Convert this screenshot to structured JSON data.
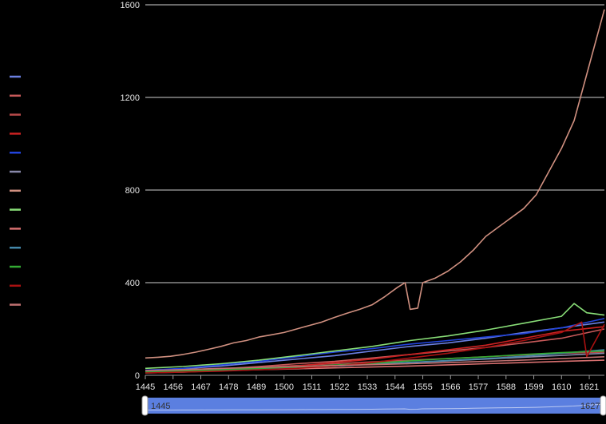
{
  "chart_data": {
    "type": "line",
    "title": "",
    "xlabel": "",
    "ylabel": "",
    "xlim": [
      1445,
      1627
    ],
    "ylim": [
      0,
      1600
    ],
    "y_ticks": [
      0,
      400,
      800,
      1200,
      1600
    ],
    "x_ticks": [
      1445,
      1456,
      1467,
      1478,
      1489,
      1500,
      1511,
      1522,
      1533,
      1544,
      1555,
      1566,
      1577,
      1588,
      1599,
      1610,
      1621
    ],
    "grid": "horizontal",
    "legend_position": "left",
    "series": [
      {
        "color": "#6b7fe0",
        "x": [
          1445,
          1460,
          1475,
          1490,
          1505,
          1520,
          1535,
          1550,
          1565,
          1580,
          1595,
          1610,
          1627
        ],
        "y": [
          20,
          28,
          40,
          55,
          70,
          85,
          105,
          125,
          140,
          160,
          185,
          205,
          230
        ]
      },
      {
        "color": "#c85a5a",
        "x": [
          1445,
          1460,
          1475,
          1490,
          1505,
          1520,
          1535,
          1550,
          1565,
          1580,
          1595,
          1610,
          1627
        ],
        "y": [
          15,
          20,
          28,
          38,
          50,
          60,
          75,
          90,
          105,
          120,
          140,
          160,
          200
        ]
      },
      {
        "color": "#b84a4a",
        "x": [
          1445,
          1460,
          1475,
          1490,
          1505,
          1520,
          1535,
          1550,
          1565,
          1580,
          1595,
          1610,
          1627
        ],
        "y": [
          18,
          22,
          28,
          35,
          42,
          50,
          58,
          66,
          72,
          80,
          88,
          95,
          100
        ]
      },
      {
        "color": "#cc2222",
        "x": [
          1445,
          1460,
          1475,
          1490,
          1505,
          1520,
          1535,
          1550,
          1565,
          1580,
          1595,
          1610,
          1627
        ],
        "y": [
          12,
          16,
          22,
          30,
          40,
          55,
          70,
          90,
          110,
          130,
          160,
          190,
          210
        ]
      },
      {
        "color": "#2244dd",
        "x": [
          1445,
          1460,
          1475,
          1490,
          1505,
          1520,
          1535,
          1550,
          1565,
          1580,
          1595,
          1610,
          1627
        ],
        "y": [
          22,
          30,
          45,
          60,
          80,
          100,
          115,
          135,
          150,
          165,
          180,
          205,
          245
        ]
      },
      {
        "color": "#8888aa",
        "x": [
          1445,
          1460,
          1475,
          1490,
          1505,
          1520,
          1535,
          1550,
          1565,
          1580,
          1595,
          1610,
          1627
        ],
        "y": [
          10,
          14,
          20,
          26,
          32,
          40,
          48,
          55,
          62,
          70,
          78,
          86,
          95
        ]
      },
      {
        "color": "#d09080",
        "x": [
          1445,
          1450,
          1455,
          1460,
          1465,
          1470,
          1475,
          1480,
          1485,
          1490,
          1495,
          1500,
          1505,
          1510,
          1515,
          1520,
          1525,
          1530,
          1535,
          1540,
          1545,
          1548,
          1550,
          1553,
          1555,
          1560,
          1565,
          1570,
          1575,
          1580,
          1585,
          1590,
          1595,
          1600,
          1605,
          1610,
          1615,
          1620,
          1627
        ],
        "y": [
          75,
          78,
          82,
          90,
          100,
          112,
          125,
          140,
          150,
          165,
          175,
          185,
          200,
          215,
          230,
          250,
          268,
          285,
          305,
          340,
          380,
          400,
          285,
          290,
          400,
          420,
          450,
          490,
          540,
          600,
          640,
          680,
          720,
          780,
          880,
          980,
          1100,
          1300,
          1580
        ]
      },
      {
        "color": "#88dd77",
        "x": [
          1445,
          1460,
          1475,
          1490,
          1505,
          1520,
          1535,
          1550,
          1565,
          1580,
          1595,
          1610,
          1615,
          1620,
          1627
        ],
        "y": [
          30,
          38,
          50,
          65,
          85,
          105,
          125,
          150,
          170,
          195,
          225,
          255,
          310,
          270,
          260
        ]
      },
      {
        "color": "#d87070",
        "x": [
          1445,
          1460,
          1475,
          1490,
          1505,
          1520,
          1535,
          1550,
          1565,
          1580,
          1595,
          1610,
          1627
        ],
        "y": [
          12,
          15,
          20,
          24,
          28,
          32,
          36,
          40,
          45,
          50,
          55,
          60,
          65
        ]
      },
      {
        "color": "#4488aa",
        "x": [
          1445,
          1460,
          1475,
          1490,
          1505,
          1520,
          1535,
          1550,
          1565,
          1580,
          1595,
          1610,
          1627
        ],
        "y": [
          15,
          18,
          22,
          28,
          34,
          40,
          48,
          56,
          64,
          72,
          82,
          95,
          110
        ]
      },
      {
        "color": "#33aa33",
        "x": [
          1445,
          1460,
          1475,
          1490,
          1505,
          1520,
          1535,
          1550,
          1565,
          1580,
          1595,
          1610,
          1627
        ],
        "y": [
          14,
          18,
          24,
          30,
          36,
          44,
          52,
          62,
          72,
          80,
          90,
          98,
          105
        ]
      },
      {
        "color": "#aa1111",
        "x": [
          1445,
          1460,
          1475,
          1490,
          1505,
          1520,
          1535,
          1550,
          1565,
          1580,
          1595,
          1610,
          1618,
          1620,
          1627
        ],
        "y": [
          10,
          14,
          18,
          24,
          30,
          40,
          55,
          75,
          95,
          120,
          150,
          185,
          230,
          80,
          220
        ]
      },
      {
        "color": "#c07070",
        "x": [
          1445,
          1460,
          1475,
          1490,
          1505,
          1520,
          1535,
          1550,
          1565,
          1580,
          1595,
          1610,
          1627
        ],
        "y": [
          20,
          25,
          30,
          34,
          38,
          42,
          46,
          50,
          55,
          60,
          66,
          72,
          80
        ]
      }
    ]
  },
  "zoom": {
    "start_label": "1445",
    "end_label": "1627",
    "fill_color": "#5b7fe0"
  }
}
